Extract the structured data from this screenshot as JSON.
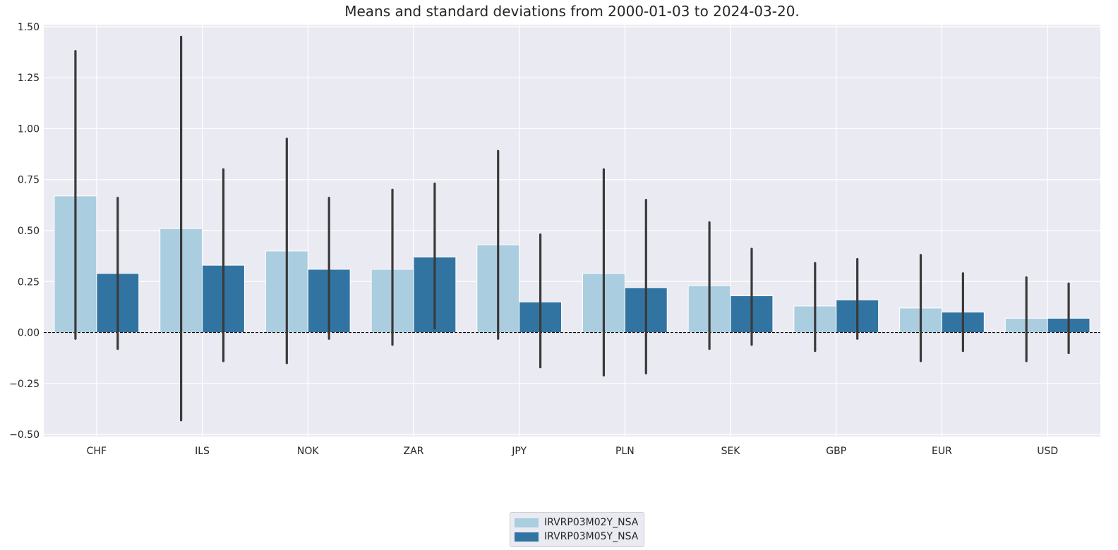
{
  "chart_data": {
    "type": "bar",
    "title": "Means and standard deviations from 2000-01-03 to 2024-03-20.",
    "xlabel": "",
    "ylabel": "",
    "categories": [
      "CHF",
      "ILS",
      "NOK",
      "ZAR",
      "JPY",
      "PLN",
      "SEK",
      "GBP",
      "EUR",
      "USD"
    ],
    "series": [
      {
        "name": "IRVRP03M02Y_NSA",
        "color": "#abcde0",
        "values": [
          0.67,
          0.51,
          0.4,
          0.31,
          0.43,
          0.29,
          0.23,
          0.13,
          0.12,
          0.07
        ],
        "error_low": [
          -0.03,
          -0.43,
          -0.15,
          -0.06,
          -0.03,
          -0.21,
          -0.08,
          -0.09,
          -0.14,
          -0.14
        ],
        "error_high": [
          1.38,
          1.45,
          0.95,
          0.7,
          0.89,
          0.8,
          0.54,
          0.34,
          0.38,
          0.27
        ]
      },
      {
        "name": "IRVRP03M05Y_NSA",
        "color": "#3274a1",
        "values": [
          0.29,
          0.33,
          0.31,
          0.37,
          0.15,
          0.22,
          0.18,
          0.16,
          0.1,
          0.07
        ],
        "error_low": [
          -0.08,
          -0.14,
          -0.03,
          0.02,
          -0.17,
          -0.2,
          -0.06,
          -0.03,
          -0.09,
          -0.1
        ],
        "error_high": [
          0.66,
          0.8,
          0.66,
          0.73,
          0.48,
          0.65,
          0.41,
          0.36,
          0.29,
          0.24
        ]
      }
    ],
    "ylim": [
      -0.51,
      1.51
    ],
    "yticks": [
      -0.5,
      -0.25,
      0.0,
      0.25,
      0.5,
      0.75,
      1.0,
      1.25,
      1.5
    ],
    "ytick_labels": [
      "−0.50",
      "−0.25",
      "0.00",
      "0.25",
      "0.50",
      "0.75",
      "1.00",
      "1.25",
      "1.50"
    ],
    "grid": true,
    "zero_line": "dashed",
    "legend_position": "bottom-center",
    "colors": {
      "background": "#eaeaf2",
      "grid": "#ffffff",
      "error_bar": "#3a3a3a",
      "zero_line": "#000000"
    }
  }
}
